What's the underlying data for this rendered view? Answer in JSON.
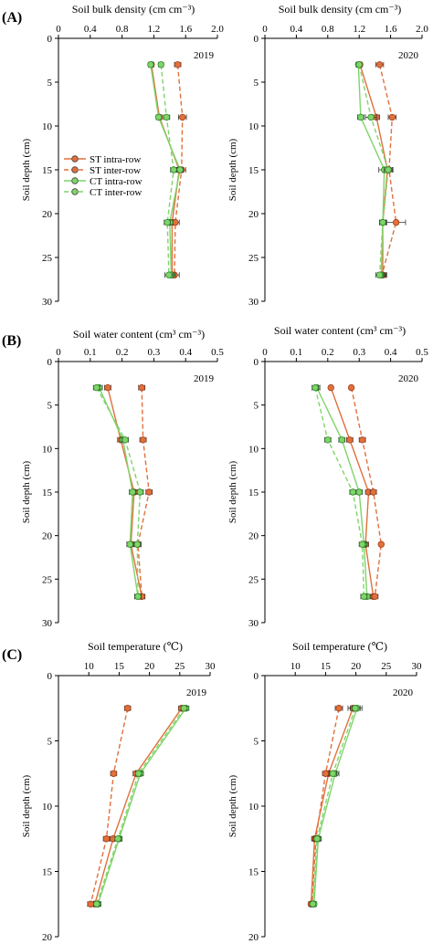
{
  "figure": {
    "panel_labels": [
      "(A)",
      "(B)",
      "(C)"
    ],
    "colors": {
      "st": "#e0703c",
      "st_stroke": "#a5401a",
      "ct": "#7fd46a",
      "ct_stroke": "#2f8a2a",
      "axis": "#000000"
    },
    "legend": [
      {
        "label": "ST intra-row",
        "color": "#e0703c",
        "dash": false
      },
      {
        "label": "ST inter-row",
        "color": "#e0703c",
        "dash": true
      },
      {
        "label": "CT intra-row",
        "color": "#7fd46a",
        "dash": false
      },
      {
        "label": "CT inter-row",
        "color": "#7fd46a",
        "dash": true
      }
    ]
  },
  "chart_data": [
    {
      "id": "A2019",
      "type": "line",
      "panel": "(A)",
      "year": "2019",
      "title": "Soil bulk density (cm  cm⁻³)",
      "ylabel": "Soil depth (cm)",
      "xlim": [
        0,
        2
      ],
      "xticks": [
        "0",
        "0.4",
        "0.8",
        "1.2",
        "1.6",
        "2.0"
      ],
      "xtick_values": [
        0,
        0.4,
        0.8,
        1.2,
        1.6,
        2.0
      ],
      "ylim": [
        30,
        0
      ],
      "yticks": [
        0,
        5,
        10,
        15,
        20,
        25,
        30
      ],
      "legend": true,
      "depths": [
        3,
        9,
        15,
        21,
        27
      ],
      "series": [
        {
          "name": "ST intra-row",
          "color": "st",
          "dash": false,
          "values": [
            1.17,
            1.27,
            1.52,
            1.43,
            1.43
          ],
          "err": [
            0.03,
            0.03,
            0.04,
            0.04,
            0.05
          ]
        },
        {
          "name": "ST inter-row",
          "color": "st",
          "dash": true,
          "values": [
            1.5,
            1.56,
            1.55,
            1.47,
            1.46
          ],
          "err": [
            0.04,
            0.05,
            0.05,
            0.05,
            0.06
          ]
        },
        {
          "name": "CT intra-row",
          "color": "ct",
          "dash": false,
          "values": [
            1.16,
            1.26,
            1.53,
            1.4,
            1.42
          ],
          "err": [
            0.03,
            0.03,
            0.04,
            0.04,
            0.05
          ]
        },
        {
          "name": "CT inter-row",
          "color": "ct",
          "dash": true,
          "values": [
            1.29,
            1.36,
            1.45,
            1.37,
            1.39
          ],
          "err": [
            0.03,
            0.04,
            0.04,
            0.04,
            0.05
          ]
        }
      ]
    },
    {
      "id": "A2020",
      "type": "line",
      "panel": "",
      "year": "2020",
      "title": "Soil bulk density (cm  cm⁻³)",
      "ylabel": "Soil depth (cm)",
      "xlim": [
        0,
        2
      ],
      "xticks": [
        "0",
        "0.4",
        "0.8",
        "1.2",
        "1.6",
        "2.0"
      ],
      "xtick_values": [
        0,
        0.4,
        0.8,
        1.2,
        1.6,
        2.0
      ],
      "ylim": [
        30,
        0
      ],
      "yticks": [
        0,
        5,
        10,
        15,
        20,
        25,
        30
      ],
      "legend": false,
      "depths": [
        3,
        9,
        15,
        21,
        27
      ],
      "series": [
        {
          "name": "ST intra-row",
          "color": "st",
          "dash": false,
          "values": [
            1.21,
            1.42,
            1.56,
            1.5,
            1.5
          ],
          "err": [
            0.03,
            0.04,
            0.04,
            0.04,
            0.05
          ]
        },
        {
          "name": "ST inter-row",
          "color": "st",
          "dash": true,
          "values": [
            1.46,
            1.62,
            1.58,
            1.67,
            1.49
          ],
          "err": [
            0.05,
            0.05,
            0.05,
            0.12,
            0.05
          ]
        },
        {
          "name": "CT intra-row",
          "color": "ct",
          "dash": false,
          "values": [
            1.19,
            1.22,
            1.52,
            1.5,
            1.48
          ],
          "err": [
            0.03,
            0.04,
            0.07,
            0.04,
            0.05
          ]
        },
        {
          "name": "CT inter-row",
          "color": "ct",
          "dash": true,
          "values": [
            1.2,
            1.35,
            1.57,
            1.5,
            1.46
          ],
          "err": [
            0.03,
            0.07,
            0.05,
            0.04,
            0.05
          ]
        }
      ]
    },
    {
      "id": "B2019",
      "type": "line",
      "panel": "(B)",
      "year": "2019",
      "title": "Soil water content (cm³ cm⁻³)",
      "ylabel": "Soil depth (cm)",
      "xlim": [
        0,
        0.5
      ],
      "xticks": [
        "0",
        "0.1",
        "0.2",
        "0.3",
        "0.4",
        "0.5"
      ],
      "xtick_values": [
        0,
        0.1,
        0.2,
        0.3,
        0.4,
        0.5
      ],
      "ylim": [
        30,
        0
      ],
      "yticks": [
        0,
        5,
        10,
        15,
        20,
        25,
        30
      ],
      "legend": false,
      "depths": [
        3,
        9,
        15,
        21,
        27
      ],
      "series": [
        {
          "name": "ST intra-row",
          "color": "st",
          "dash": false,
          "values": [
            0.155,
            0.196,
            0.238,
            0.228,
            0.262
          ],
          "err": [
            0.01,
            0.01,
            0.01,
            0.01,
            0.01
          ]
        },
        {
          "name": "ST inter-row",
          "color": "st",
          "dash": true,
          "values": [
            0.262,
            0.266,
            0.285,
            0.25,
            0.262
          ],
          "err": [
            0.01,
            0.01,
            0.01,
            0.01,
            0.01
          ]
        },
        {
          "name": "CT intra-row",
          "color": "ct",
          "dash": false,
          "values": [
            0.128,
            0.203,
            0.233,
            0.225,
            0.25
          ],
          "err": [
            0.01,
            0.01,
            0.01,
            0.01,
            0.01
          ]
        },
        {
          "name": "CT inter-row",
          "color": "ct",
          "dash": true,
          "values": [
            0.12,
            0.21,
            0.257,
            0.248,
            0.25
          ],
          "err": [
            0.01,
            0.01,
            0.01,
            0.01,
            0.01
          ]
        }
      ]
    },
    {
      "id": "B2020",
      "type": "line",
      "panel": "",
      "year": "2020",
      "title": "Soil water content (cm³ cm⁻³)",
      "ylabel": "Soil depth (cm)",
      "xlim": [
        0,
        0.5
      ],
      "xticks": [
        "0",
        "0.1",
        "0.2",
        "0.3",
        "0.4",
        "0.5"
      ],
      "xtick_values": [
        0,
        0.1,
        0.2,
        0.3,
        0.4,
        0.5
      ],
      "ylim": [
        30,
        0
      ],
      "yticks": [
        0,
        5,
        10,
        15,
        20,
        25,
        30
      ],
      "legend": false,
      "depths": [
        3,
        9,
        15,
        21,
        27
      ],
      "series": [
        {
          "name": "ST intra-row",
          "color": "st",
          "dash": false,
          "values": [
            0.21,
            0.27,
            0.33,
            0.32,
            0.345
          ],
          "err": [
            0.005,
            0.01,
            0.01,
            0.01,
            0.01
          ]
        },
        {
          "name": "ST inter-row",
          "color": "st",
          "dash": true,
          "values": [
            0.275,
            0.31,
            0.345,
            0.37,
            0.35
          ],
          "err": [
            0.005,
            0.01,
            0.01,
            0.005,
            0.01
          ]
        },
        {
          "name": "CT intra-row",
          "color": "ct",
          "dash": false,
          "values": [
            0.165,
            0.245,
            0.3,
            0.315,
            0.325
          ],
          "err": [
            0.01,
            0.01,
            0.01,
            0.01,
            0.01
          ]
        },
        {
          "name": "CT inter-row",
          "color": "ct",
          "dash": true,
          "values": [
            0.16,
            0.2,
            0.28,
            0.31,
            0.315
          ],
          "err": [
            0.01,
            0.01,
            0.01,
            0.01,
            0.01
          ]
        }
      ]
    },
    {
      "id": "C2019",
      "type": "line",
      "panel": "(C)",
      "year": "2019",
      "title": "Soil temperature (℃)",
      "ylabel": "Soil depth (cm)",
      "xlim": [
        5,
        30
      ],
      "xticks": [
        "10",
        "15",
        "20",
        "25",
        "30"
      ],
      "xtick_values": [
        10,
        15,
        20,
        25,
        30
      ],
      "ylim": [
        20,
        0
      ],
      "yticks": [
        0,
        5,
        10,
        15,
        20
      ],
      "legend": false,
      "depths": [
        2.5,
        7.5,
        12.5,
        17.5
      ],
      "series": [
        {
          "name": "ST intra-row",
          "color": "st",
          "dash": false,
          "values": [
            25.3,
            17.8,
            14.0,
            11.0
          ],
          "err": [
            0.5,
            0.5,
            0.5,
            0.5
          ]
        },
        {
          "name": "ST inter-row",
          "color": "st",
          "dash": true,
          "values": [
            16.4,
            14.1,
            12.9,
            10.3
          ],
          "err": [
            0.5,
            0.5,
            0.5,
            0.5
          ]
        },
        {
          "name": "CT intra-row",
          "color": "ct",
          "dash": false,
          "values": [
            26.0,
            18.5,
            15.0,
            11.5
          ],
          "err": [
            0.5,
            0.5,
            0.5,
            0.5
          ]
        },
        {
          "name": "CT inter-row",
          "color": "ct",
          "dash": true,
          "values": [
            25.7,
            18.2,
            14.8,
            11.3
          ],
          "err": [
            0.5,
            0.5,
            0.5,
            0.5
          ]
        }
      ]
    },
    {
      "id": "C2020",
      "type": "line",
      "panel": "",
      "year": "2020",
      "title": "Soil temperature (℃)",
      "ylabel": "Soil depth (cm)",
      "xlim": [
        5,
        30
      ],
      "xticks": [
        "10",
        "15",
        "20",
        "25",
        "30"
      ],
      "xtick_values": [
        10,
        15,
        20,
        25,
        30
      ],
      "ylim": [
        20,
        0
      ],
      "yticks": [
        0,
        5,
        10,
        15,
        20
      ],
      "legend": false,
      "depths": [
        2.5,
        7.5,
        12.5,
        17.5
      ],
      "series": [
        {
          "name": "ST intra-row",
          "color": "st",
          "dash": false,
          "values": [
            19.5,
            15.5,
            13.2,
            12.6
          ],
          "err": [
            0.8,
            0.6,
            0.5,
            0.4
          ]
        },
        {
          "name": "ST inter-row",
          "color": "st",
          "dash": true,
          "values": [
            17.2,
            15.0,
            13.4,
            12.8
          ],
          "err": [
            0.6,
            0.5,
            0.5,
            0.4
          ]
        },
        {
          "name": "CT intra-row",
          "color": "ct",
          "dash": false,
          "values": [
            20.2,
            16.6,
            13.8,
            13.1
          ],
          "err": [
            0.8,
            0.6,
            0.5,
            0.4
          ]
        },
        {
          "name": "CT inter-row",
          "color": "ct",
          "dash": true,
          "values": [
            19.9,
            16.2,
            13.6,
            12.9
          ],
          "err": [
            0.8,
            0.6,
            0.5,
            0.4
          ]
        }
      ]
    }
  ]
}
